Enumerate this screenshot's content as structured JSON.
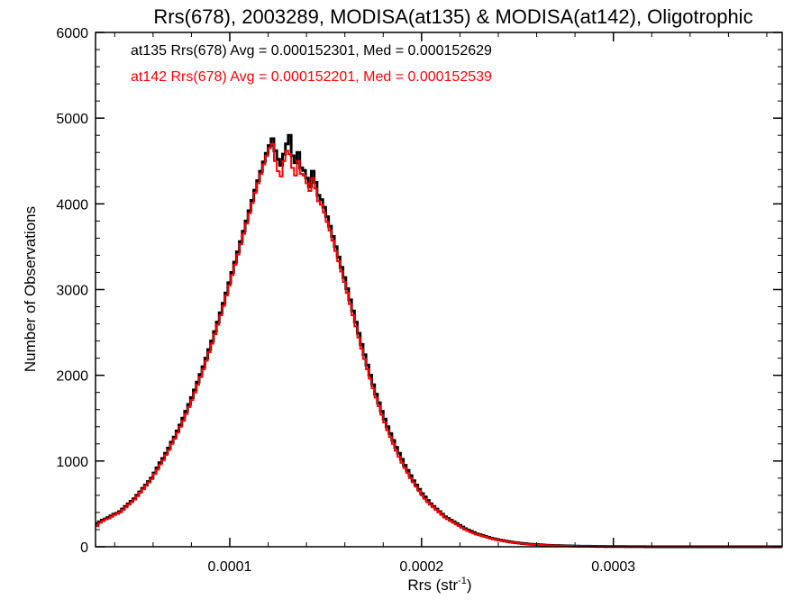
{
  "chart_data": {
    "type": "line",
    "step": true,
    "title": "Rrs(678), 2003289, MODISA(at135) & MODISA(at142), Oligotrophic",
    "xlabel": "Rrs (str",
    "xlabel_sup": "-1",
    "xlabel_close": ")",
    "ylabel": "Number of Observations",
    "xlim": [
      3e-05,
      0.000388
    ],
    "ylim": [
      0,
      6000
    ],
    "xticks": [
      0.0001,
      0.0002,
      0.0003
    ],
    "xtick_labels": [
      "0.0001",
      "0.0002",
      "0.0003"
    ],
    "yticks": [
      0,
      1000,
      2000,
      3000,
      4000,
      5000,
      6000
    ],
    "ytick_labels": [
      "0",
      "1000",
      "2000",
      "3000",
      "4000",
      "5000",
      "6000"
    ],
    "grid": false,
    "legend_placement": "top-left",
    "annotations": [
      {
        "text": "at135 Rrs(678) Avg = 0.000152301, Med = 0.000152629",
        "color": "#000000"
      },
      {
        "text": "at142 Rrs(678) Avg = 0.000152201, Med = 0.000152539",
        "color": "#ff0000"
      }
    ],
    "bin_width": 1.5e-06,
    "x_start": 3e-05,
    "series": [
      {
        "color": "#000000",
        "values": [
          270,
          290,
          310,
          325,
          340,
          360,
          380,
          390,
          410,
          440,
          470,
          500,
          530,
          560,
          600,
          640,
          680,
          720,
          760,
          800,
          860,
          920,
          980,
          1030,
          1090,
          1150,
          1220,
          1280,
          1350,
          1420,
          1500,
          1580,
          1660,
          1740,
          1830,
          1920,
          2010,
          2100,
          2200,
          2300,
          2400,
          2510,
          2620,
          2730,
          2840,
          2960,
          3080,
          3200,
          3320,
          3440,
          3560,
          3680,
          3800,
          3920,
          4040,
          4160,
          4270,
          4380,
          4490,
          4590,
          4680,
          4760,
          4620,
          4520,
          4450,
          4580,
          4700,
          4800,
          4560,
          4480,
          4600,
          4420,
          4390,
          4300,
          4200,
          4380,
          4250,
          4100,
          4050,
          3960,
          3850,
          3740,
          3620,
          3500,
          3380,
          3260,
          3140,
          3010,
          2880,
          2750,
          2620,
          2490,
          2360,
          2240,
          2120,
          2000,
          1890,
          1780,
          1680,
          1580,
          1490,
          1400,
          1320,
          1240,
          1160,
          1090,
          1020,
          950,
          890,
          830,
          770,
          720,
          670,
          620,
          580,
          540,
          500,
          470,
          440,
          410,
          380,
          350,
          330,
          310,
          290,
          270,
          250,
          230,
          210,
          195,
          180,
          165,
          150,
          140,
          130,
          120,
          110,
          100,
          92,
          85,
          78,
          72,
          66,
          60,
          55,
          50,
          46,
          42,
          38,
          35,
          32,
          29,
          27,
          25,
          23,
          21,
          19,
          17,
          16,
          15,
          14,
          13,
          12,
          11,
          10,
          9,
          8,
          8,
          7,
          7,
          6,
          6,
          5,
          5,
          4,
          4,
          4,
          3,
          3,
          3,
          2,
          2,
          2,
          2,
          1,
          1,
          1,
          1,
          1,
          1,
          1,
          0,
          0,
          0,
          0,
          0,
          0,
          0,
          0,
          0,
          0,
          0,
          0,
          0,
          0,
          0,
          0,
          0,
          0,
          0,
          0,
          0,
          0,
          0,
          0,
          0,
          0,
          0,
          0,
          0,
          0,
          0,
          0,
          0,
          0,
          0,
          0,
          0,
          0,
          0,
          0,
          0,
          0,
          0,
          0,
          0,
          0,
          0,
          0,
          0,
          0,
          0,
          0,
          0,
          0
        ]
      },
      {
        "color": "#ff0000",
        "values": [
          240,
          280,
          300,
          320,
          330,
          350,
          370,
          385,
          400,
          430,
          460,
          490,
          520,
          550,
          590,
          630,
          670,
          710,
          750,
          790,
          850,
          900,
          960,
          1010,
          1070,
          1130,
          1200,
          1260,
          1330,
          1400,
          1470,
          1550,
          1630,
          1710,
          1800,
          1890,
          1980,
          2070,
          2170,
          2270,
          2370,
          2480,
          2590,
          2700,
          2810,
          2930,
          3050,
          3170,
          3290,
          3410,
          3530,
          3650,
          3770,
          3890,
          4010,
          4130,
          4240,
          4350,
          4460,
          4560,
          4650,
          4700,
          4500,
          4380,
          4320,
          4500,
          4620,
          4580,
          4420,
          4330,
          4500,
          4350,
          4330,
          4240,
          4150,
          4300,
          4180,
          4030,
          3990,
          3900,
          3790,
          3690,
          3570,
          3450,
          3330,
          3210,
          3090,
          2960,
          2830,
          2700,
          2570,
          2440,
          2310,
          2190,
          2070,
          1960,
          1850,
          1740,
          1640,
          1540,
          1450,
          1360,
          1280,
          1200,
          1120,
          1050,
          980,
          920,
          860,
          800,
          750,
          700,
          650,
          600,
          560,
          520,
          490,
          460,
          430,
          400,
          370,
          340,
          320,
          300,
          280,
          260,
          240,
          220,
          200,
          185,
          170,
          155,
          145,
          135,
          125,
          115,
          105,
          96,
          88,
          81,
          75,
          69,
          63,
          57,
          52,
          48,
          44,
          40,
          36,
          33,
          30,
          28,
          26,
          24,
          22,
          20,
          18,
          17,
          16,
          15,
          14,
          13,
          12,
          11,
          10,
          9,
          8,
          8,
          7,
          7,
          6,
          6,
          5,
          5,
          4,
          4,
          4,
          3,
          3,
          3,
          2,
          2,
          2,
          2,
          1,
          1,
          1,
          1,
          1,
          1,
          1,
          0,
          0,
          0,
          0,
          0,
          0,
          0,
          0,
          0,
          0,
          0,
          0,
          0,
          0,
          0,
          0,
          0,
          0,
          0,
          0,
          0,
          0,
          0,
          0,
          0,
          0,
          0,
          0,
          0,
          0,
          0,
          0,
          0,
          0,
          0,
          0,
          0,
          0,
          0,
          0,
          0,
          0,
          0,
          0,
          0,
          0,
          0,
          0,
          0,
          0,
          0,
          0,
          0,
          0
        ]
      }
    ]
  }
}
